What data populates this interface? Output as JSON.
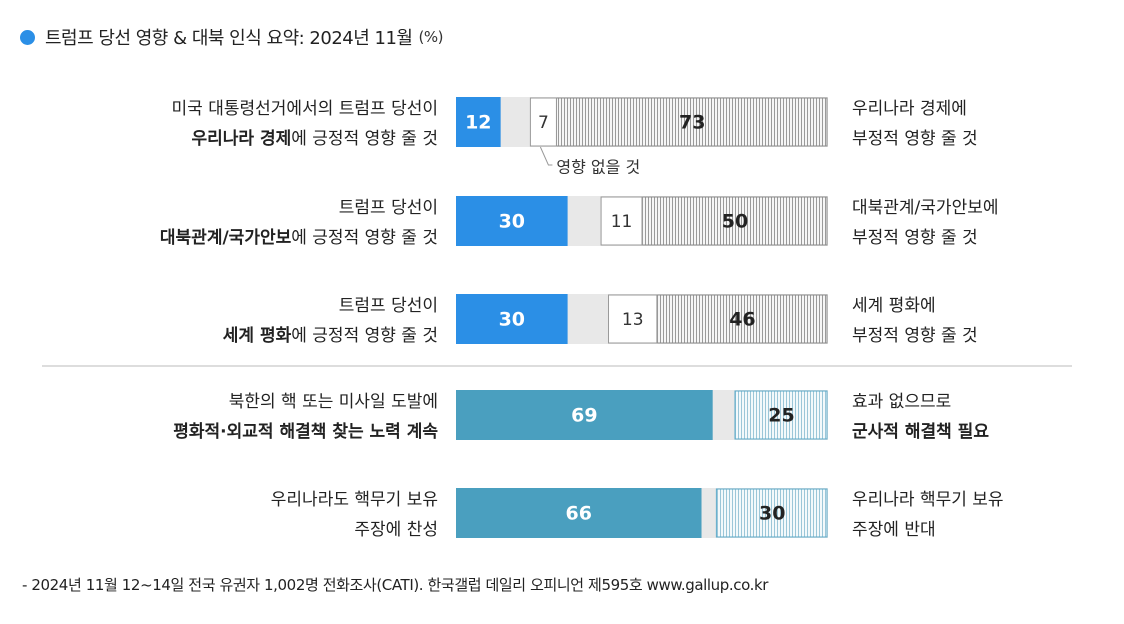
{
  "header": {
    "title": "트럼프 당선 영향 & 대북 인식 요약: 2024년 11월",
    "unit": "(%)"
  },
  "colors": {
    "positive": "#2b8fe6",
    "neutral_bg": "#e8e8e8",
    "negative_hatch": "#9a9a9a",
    "teal": "#4a9fbf",
    "teal_hatch": "#9bc6d8",
    "divider": "#bbbbbb"
  },
  "chart_data": {
    "type": "bar",
    "layout": "stacked-horizontal-diverging",
    "xlim": [
      0,
      100
    ],
    "rows": [
      {
        "left_label": [
          "미국 대통령선거에서의 트럼프 당선이",
          "우리나라 경제에 긍정적 영향 줄 것"
        ],
        "left_bold": "우리나라 경제",
        "right_label": [
          "우리나라 경제에",
          "부정적 영향 줄 것"
        ],
        "positive": 12,
        "neutral": 7,
        "negative": 73,
        "neutral_note": "영향 없을 것",
        "style": "blue"
      },
      {
        "left_label": [
          "트럼프 당선이",
          "대북관계/국가안보에 긍정적 영향 줄 것"
        ],
        "left_bold": "대북관계/국가안보",
        "right_label": [
          "대북관계/국가안보에",
          "부정적 영향 줄 것"
        ],
        "positive": 30,
        "neutral": 11,
        "negative": 50,
        "style": "blue"
      },
      {
        "left_label": [
          "트럼프 당선이",
          "세계 평화에 긍정적 영향 줄 것"
        ],
        "left_bold": "세계 평화",
        "right_label": [
          "세계 평화에",
          "부정적 영향 줄 것"
        ],
        "positive": 30,
        "neutral": 13,
        "negative": 46,
        "style": "blue"
      },
      {
        "left_label": [
          "북한의 핵 또는 미사일 도발에",
          "평화적·외교적 해결책 찾는 노력 계속"
        ],
        "left_bold": "평화적·외교적 해결책 찾는 노력 계속",
        "right_label": [
          "효과 없으므로",
          "군사적 해결책 필요"
        ],
        "right_bold": "군사적 해결책 필요",
        "positive": 69,
        "negative": 25,
        "style": "teal"
      },
      {
        "left_label": [
          "우리나라도 핵무기 보유",
          "주장에 찬성"
        ],
        "right_label": [
          "우리나라 핵무기 보유",
          "주장에 반대"
        ],
        "positive": 66,
        "negative": 30,
        "style": "teal"
      }
    ]
  },
  "footer": {
    "source": "- 2024년 11월 12~14일 전국 유권자 1,002명 전화조사(CATI). 한국갤럽 데일리 오피니언 제595호 www.gallup.co.kr"
  }
}
